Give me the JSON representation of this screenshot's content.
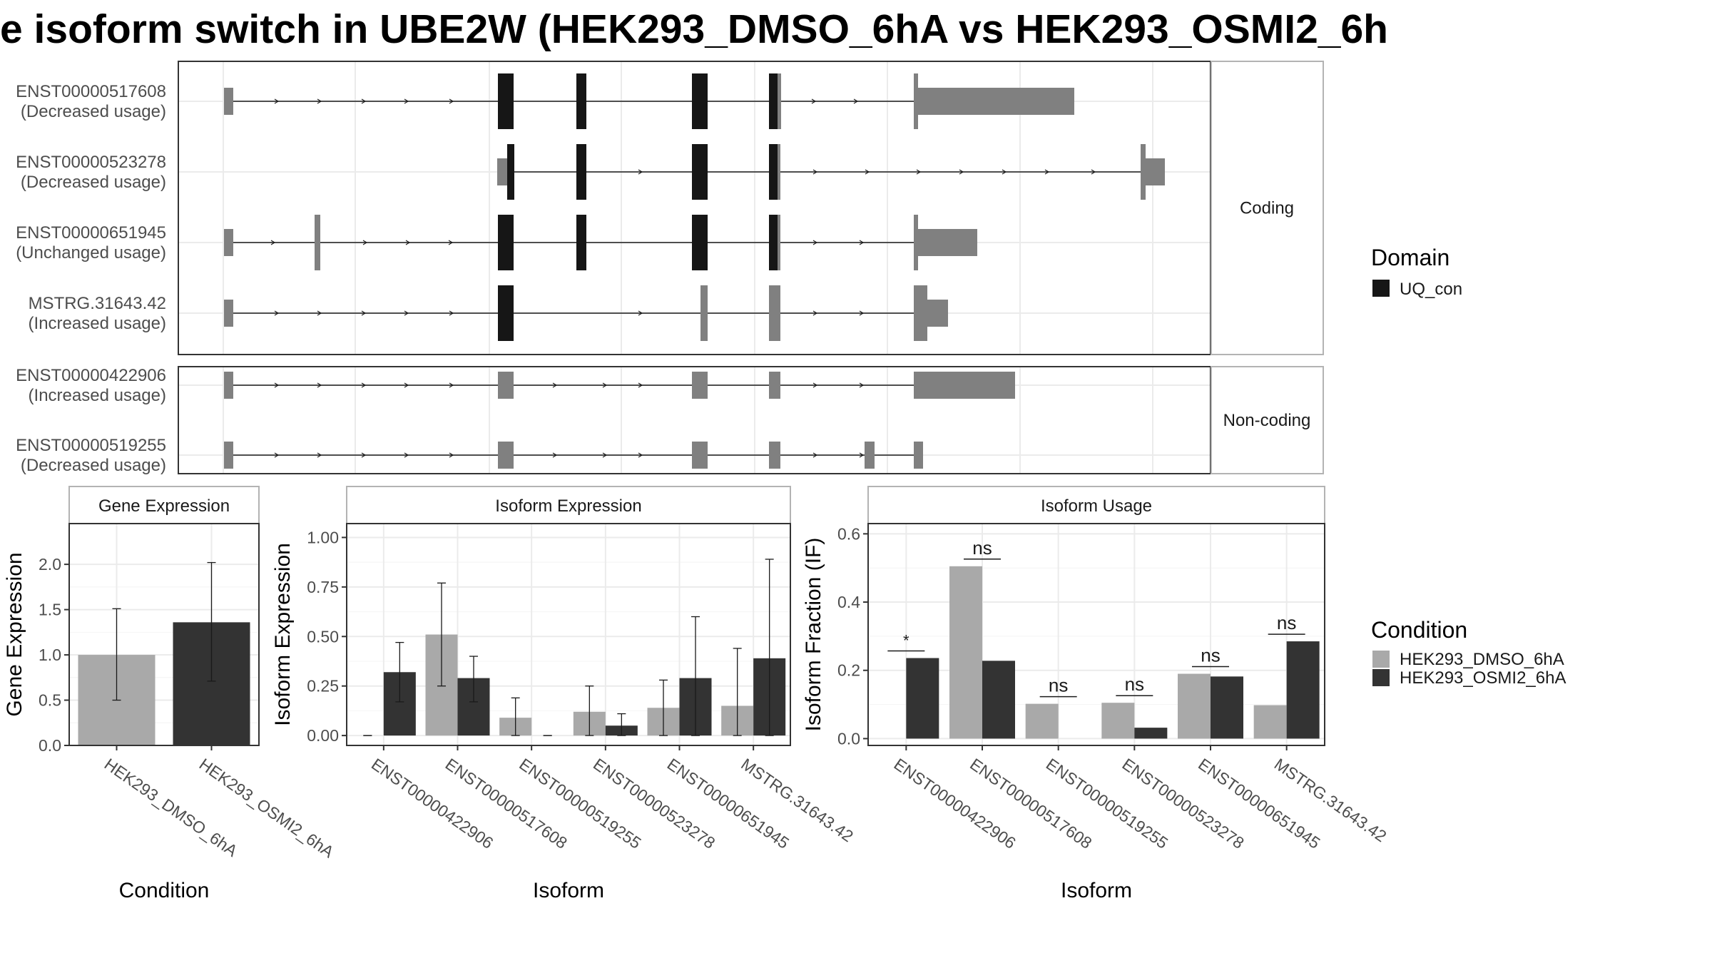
{
  "title": "e isoform switch in UBE2W (HEK293_DMSO_6hA vs HEK293_OSMI2_6h",
  "colors": {
    "dmso": "#a9a9a9",
    "osmi2": "#333333",
    "exon": "#808080",
    "domain": "#161616",
    "grid": "#ebebeb",
    "panel_border": "#333333",
    "strip_border": "#b3b3b3"
  },
  "structure": {
    "sections": [
      "Coding",
      "Non-coding"
    ],
    "transcripts": [
      {
        "id": "ENST00000517608",
        "usage": "(Decreased usage)",
        "section": 0
      },
      {
        "id": "ENST00000523278",
        "usage": "(Decreased usage)",
        "section": 0
      },
      {
        "id": "ENST00000651945",
        "usage": "(Unchanged usage)",
        "section": 0
      },
      {
        "id": "MSTRG.31643.42",
        "usage": "(Increased usage)",
        "section": 0
      },
      {
        "id": "ENST00000422906",
        "usage": "(Increased usage)",
        "section": 1
      },
      {
        "id": "ENST00000519255",
        "usage": "(Decreased usage)",
        "section": 1
      }
    ]
  },
  "legend": {
    "domain_title": "Domain",
    "domain_item": "UQ_con",
    "condition_title": "Condition",
    "conditions": [
      "HEK293_DMSO_6hA",
      "HEK293_OSMI2_6hA"
    ]
  },
  "chart_data": [
    {
      "type": "bar",
      "title": "Gene Expression",
      "xlabel": "Condition",
      "ylabel": "Gene Expression",
      "ylim": [
        0,
        2.45
      ],
      "yticks": [
        "0.0",
        "0.5",
        "1.0",
        "1.5",
        "2.0"
      ],
      "categories": [
        "HEK293_DMSO_6hA",
        "HEK293_OSMI2_6hA"
      ],
      "values": [
        1.0,
        1.36
      ],
      "error_low": [
        0.5,
        0.71
      ],
      "error_high": [
        1.51,
        2.02
      ],
      "grid": true
    },
    {
      "type": "bar",
      "title": "Isoform Expression",
      "xlabel": "Isoform",
      "ylabel": "Isoform Expression",
      "ylim": [
        -0.05,
        1.07
      ],
      "yticks": [
        "0.00",
        "0.25",
        "0.50",
        "0.75",
        "1.00"
      ],
      "categories": [
        "ENST00000422906",
        "ENST00000517608",
        "ENST00000519255",
        "ENST00000523278",
        "ENST00000651945",
        "MSTRG.31643.42"
      ],
      "series": [
        {
          "name": "HEK293_DMSO_6hA",
          "values": [
            0.0,
            0.51,
            0.09,
            0.12,
            0.14,
            0.15
          ],
          "error_low": [
            0.0,
            0.25,
            0.0,
            0.0,
            0.0,
            0.0
          ],
          "error_high": [
            0.0,
            0.77,
            0.19,
            0.25,
            0.28,
            0.44
          ]
        },
        {
          "name": "HEK293_OSMI2_6hA",
          "values": [
            0.32,
            0.29,
            0.0,
            0.05,
            0.29,
            0.39
          ],
          "error_low": [
            0.17,
            0.17,
            0.0,
            0.0,
            0.0,
            0.0
          ],
          "error_high": [
            0.47,
            0.4,
            0.0,
            0.11,
            0.6,
            0.89
          ]
        }
      ],
      "grid": true
    },
    {
      "type": "bar",
      "title": "Isoform Usage",
      "xlabel": "Isoform",
      "ylabel": "Isoform Fraction (IF)",
      "ylim": [
        -0.02,
        0.63
      ],
      "yticks": [
        "0.0",
        "0.2",
        "0.4",
        "0.6"
      ],
      "categories": [
        "ENST00000422906",
        "ENST00000517608",
        "ENST00000519255",
        "ENST00000523278",
        "ENST00000651945",
        "MSTRG.31643.42"
      ],
      "series": [
        {
          "name": "HEK293_DMSO_6hA",
          "values": [
            0.0,
            0.505,
            0.102,
            0.105,
            0.19,
            0.098
          ]
        },
        {
          "name": "HEK293_OSMI2_6hA",
          "values": [
            0.236,
            0.228,
            0.0,
            0.032,
            0.182,
            0.285
          ]
        }
      ],
      "significance": [
        "*",
        "ns",
        "ns",
        "ns",
        "ns",
        "ns"
      ],
      "grid": true
    }
  ]
}
